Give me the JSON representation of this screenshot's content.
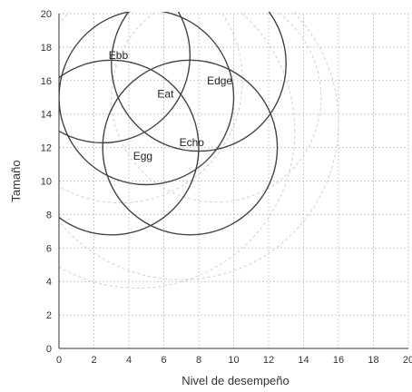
{
  "chart_data": {
    "type": "scatter",
    "title": "",
    "xlabel": "Nivel de desempeño",
    "ylabel": "Tamaño",
    "xlim": [
      0,
      20
    ],
    "ylim": [
      0,
      20
    ],
    "x_ticks": [
      "0",
      "2",
      "4",
      "6",
      "8",
      "10",
      "12",
      "14",
      "16",
      "18",
      "20"
    ],
    "y_ticks": [
      "0",
      "2",
      "4",
      "6",
      "8",
      "10",
      "12",
      "14",
      "16",
      "18",
      "20"
    ],
    "grid": true,
    "items": [
      {
        "name": "Ebb",
        "cx": 2.5,
        "cy": 17.5,
        "r": 5.0
      },
      {
        "name": "Edge",
        "cx": 8.0,
        "cy": 17.0,
        "r": 5.0
      },
      {
        "name": "Eat",
        "cx": 5.0,
        "cy": 15.0,
        "r": 5.0
      },
      {
        "name": "Echo",
        "cx": 7.5,
        "cy": 12.0,
        "r": 5.0
      },
      {
        "name": "Egg",
        "cx": 3.0,
        "cy": 12.0,
        "r": 5.0
      }
    ],
    "faint_circles": [
      {
        "cx": 4.5,
        "cy": 13.0,
        "r": 9.0
      },
      {
        "cx": 7.0,
        "cy": 13.5,
        "r": 9.0
      },
      {
        "cx": 3.5,
        "cy": 16.0,
        "r": 7.0
      },
      {
        "cx": 9.0,
        "cy": 15.0,
        "r": 6.0
      }
    ],
    "colors": {
      "circle": "#444444",
      "grid": "#cccccc",
      "faint": "#cfcfcf"
    }
  }
}
